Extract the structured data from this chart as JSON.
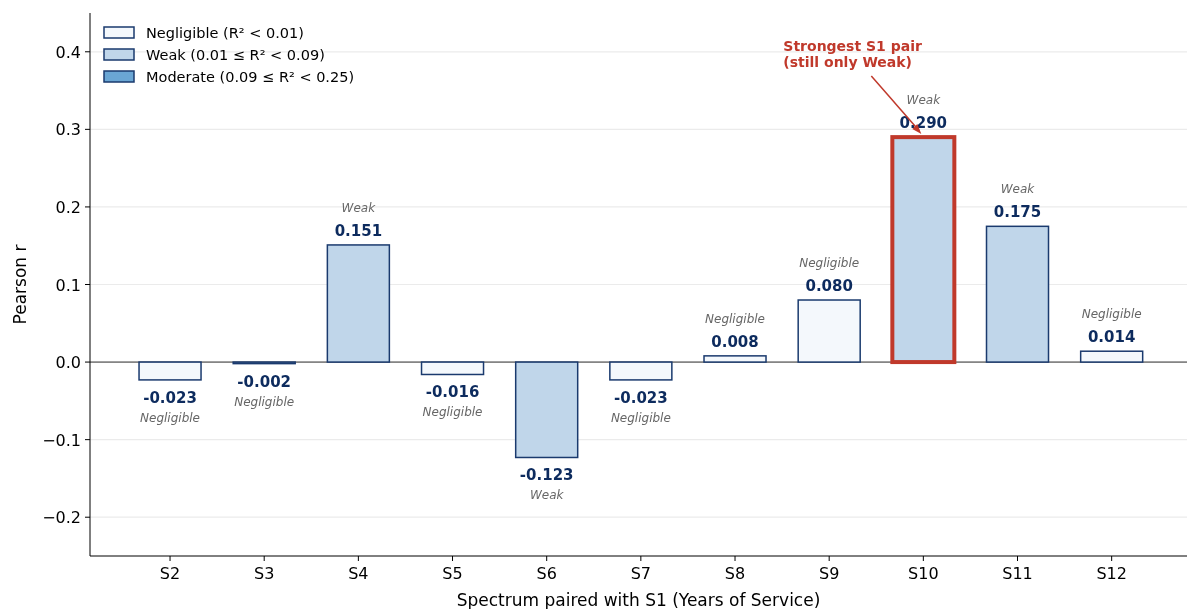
{
  "chart_data": {
    "type": "bar",
    "xlabel": "Spectrum paired with S1 (Years of Service)",
    "ylabel": "Pearson r",
    "categories": [
      "S2",
      "S3",
      "S4",
      "S5",
      "S6",
      "S7",
      "S8",
      "S9",
      "S10",
      "S11",
      "S12"
    ],
    "series": [
      {
        "name": "Negligible (R² < 0.01)",
        "color": "#f4f8fc",
        "values": [
          -0.023,
          -0.002,
          null,
          -0.016,
          null,
          -0.023,
          0.008,
          0.08,
          null,
          null,
          0.014
        ],
        "value_labels": [
          "-0.023",
          "-0.002",
          null,
          "-0.016",
          null,
          "-0.023",
          "0.008",
          "0.080",
          null,
          null,
          "0.014"
        ]
      },
      {
        "name": "Weak (0.01 ≤ R² < 0.09)",
        "color": "#c0d6ea",
        "values": [
          null,
          null,
          0.151,
          null,
          -0.123,
          null,
          null,
          null,
          0.29,
          0.175,
          null
        ],
        "value_labels": [
          null,
          null,
          "0.151",
          null,
          "-0.123",
          null,
          null,
          null,
          "0.290",
          "0.175",
          null
        ]
      },
      {
        "name": "Moderate (0.09 ≤ R² < 0.25)",
        "color": "#6aa6d4",
        "values": [
          null,
          null,
          null,
          null,
          null,
          null,
          null,
          null,
          null,
          null,
          null
        ]
      }
    ],
    "ylim": [
      -0.25,
      0.45
    ],
    "yticks": [
      {
        "value": -0.2,
        "label": "−0.2"
      },
      {
        "value": -0.1,
        "label": "−0.1"
      },
      {
        "value": 0,
        "label": "0.0"
      },
      0.1,
      0.2,
      0.3,
      0.4
    ],
    "grid": "y",
    "legend": "top left",
    "annotations": [
      "Negligible",
      "Negligible",
      "Weak",
      "Negligible",
      "Weak",
      "Negligible",
      "Negligible",
      "Negligible",
      "Weak",
      "Weak",
      "Negligible",
      {
        "text": "Strongest S1 pair\n(still only Weak)",
        "x": "S10",
        "y": 0.29
      }
    ]
  }
}
